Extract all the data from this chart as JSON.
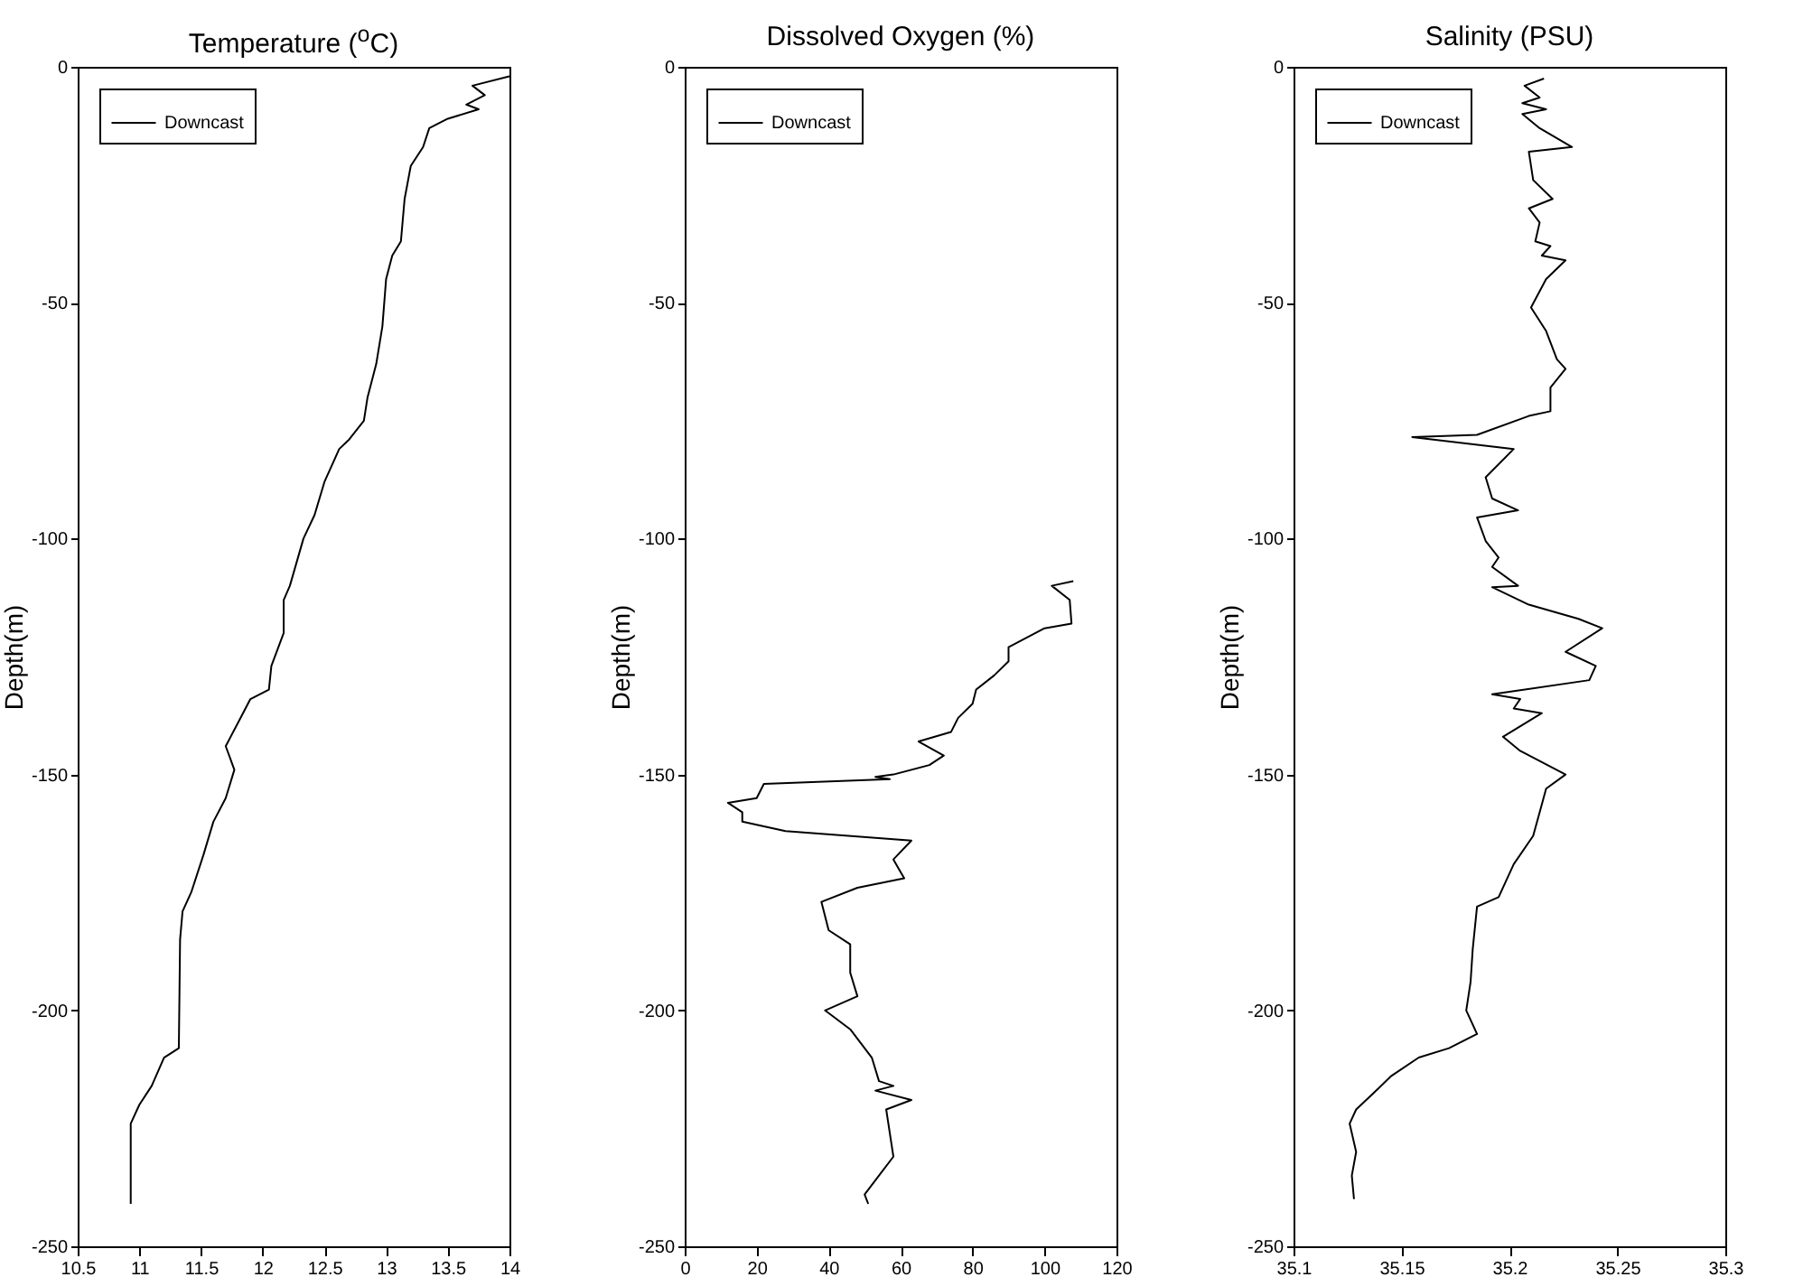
{
  "chart_data": [
    {
      "type": "line",
      "title": "Temperature ($^{o}$C)",
      "ylabel": "Depth(m)",
      "xlim": [
        10.5,
        14
      ],
      "xticks": [
        10.5,
        11,
        11.5,
        12,
        12.5,
        13,
        13.5,
        14
      ],
      "ylim": [
        -250,
        0
      ],
      "yticks": [
        -250,
        -200,
        -150,
        -100,
        -50,
        0
      ],
      "legend": "top left",
      "series": [
        {
          "name": "Downcast",
          "color": "#000000",
          "x": [
            14.0,
            13.7,
            13.8,
            13.65,
            13.75,
            13.5,
            13.35,
            13.3,
            13.2,
            13.15,
            13.12,
            13.05,
            13.0,
            12.97,
            12.92,
            12.85,
            12.82,
            12.7,
            12.62,
            12.5,
            12.42,
            12.33,
            12.22,
            12.17,
            12.17,
            12.07,
            12.05,
            11.9,
            11.82,
            11.7,
            11.77,
            11.7,
            11.6,
            11.52,
            11.42,
            11.35,
            11.33,
            11.32,
            11.2,
            11.1,
            11.0,
            10.93,
            10.93
          ],
          "values": [
            -2,
            -4,
            -6,
            -8,
            -9,
            -11,
            -13,
            -17,
            -21,
            -28,
            -37,
            -40,
            -45,
            -55,
            -63,
            -70,
            -75,
            -79,
            -81,
            -88,
            -95,
            -100,
            -110,
            -113,
            -120,
            -127,
            -132,
            -134,
            -138,
            -144,
            -149,
            -155,
            -160,
            -167,
            -175,
            -179,
            -185,
            -208,
            -210,
            -216,
            -220,
            -224,
            -241
          ]
        }
      ]
    },
    {
      "type": "line",
      "title": "Dissolved Oxygen (%)",
      "ylabel": "Depth(m)",
      "xlim": [
        0,
        120
      ],
      "xticks": [
        0,
        20,
        40,
        60,
        80,
        100,
        120
      ],
      "ylim": [
        -250,
        0
      ],
      "yticks": [
        -250,
        -200,
        -150,
        -100,
        -50,
        0
      ],
      "legend": "top left",
      "series": [
        {
          "name": "Downcast",
          "color": "#000000",
          "x": [
            108,
            102,
            107,
            107.5,
            100,
            90,
            90,
            86,
            81,
            80,
            76,
            74,
            65,
            72,
            68,
            58,
            53,
            57,
            22,
            20,
            12,
            16,
            16,
            28,
            63,
            58,
            61,
            48,
            38,
            40,
            46,
            46,
            48,
            39,
            46,
            52,
            54,
            58,
            53,
            63,
            56,
            57,
            58,
            54,
            50,
            51
          ],
          "values": [
            -109,
            -110,
            -113,
            -118,
            -119,
            -123,
            -126,
            -129,
            -132,
            -135,
            -138,
            -141,
            -143,
            -146,
            -148,
            -150,
            -150.5,
            -151,
            -152,
            -155,
            -156,
            -158,
            -160,
            -162,
            -164,
            -168,
            -172,
            -174,
            -177,
            -183,
            -186,
            -192,
            -197,
            -200,
            -204,
            -210,
            -215,
            -216,
            -217,
            -219,
            -221,
            -226,
            -231,
            -235,
            -239,
            -241
          ]
        }
      ]
    },
    {
      "type": "line",
      "title": "Salinity (PSU)",
      "ylabel": "Depth(m)",
      "xlim": [
        35.1,
        35.3
      ],
      "xticks": [
        35.1,
        35.15,
        35.2,
        35.25,
        35.3
      ],
      "ylim": [
        -250,
        0
      ],
      "yticks": [
        -250,
        -200,
        -150,
        -100,
        -50,
        0
      ],
      "legend": "top left",
      "series": [
        {
          "name": "Downcast",
          "color": "#000000",
          "x": [
            35.216,
            35.207,
            35.214,
            35.206,
            35.217,
            35.206,
            35.214,
            35.229,
            35.209,
            35.211,
            35.22,
            35.209,
            35.214,
            35.212,
            35.219,
            35.215,
            35.226,
            35.217,
            35.21,
            35.217,
            35.222,
            35.226,
            35.219,
            35.219,
            35.209,
            35.185,
            35.155,
            35.202,
            35.189,
            35.192,
            35.204,
            35.185,
            35.189,
            35.195,
            35.192,
            35.204,
            35.192,
            35.209,
            35.232,
            35.243,
            35.226,
            35.24,
            35.237,
            35.192,
            35.205,
            35.202,
            35.215,
            35.197,
            35.205,
            35.226,
            35.217,
            35.214,
            35.211,
            35.202,
            35.195,
            35.185,
            35.183,
            35.182,
            35.18,
            35.185,
            35.172,
            35.158,
            35.145,
            35.136,
            35.129,
            35.126,
            35.129,
            35.127,
            35.128
          ],
          "values": [
            -2.5,
            -4,
            -6.5,
            -7.7,
            -9,
            -10,
            -13,
            -17,
            -18,
            -24,
            -28,
            -30,
            -33,
            -37,
            -38,
            -40,
            -41,
            -45,
            -51,
            -56,
            -62,
            -64,
            -68,
            -73,
            -74,
            -78,
            -78.5,
            -81,
            -87,
            -91.5,
            -94,
            -95.5,
            -100.5,
            -104,
            -106,
            -110,
            -110.3,
            -114,
            -117,
            -119,
            -124,
            -127,
            -130,
            -133,
            -134,
            -136,
            -137,
            -142,
            -145,
            -150,
            -153,
            -158,
            -163,
            -169,
            -176,
            -178,
            -187,
            -194,
            -200,
            -205,
            -208,
            -210,
            -214,
            -218,
            -221,
            -224,
            -230,
            -235,
            -240
          ]
        }
      ]
    }
  ]
}
